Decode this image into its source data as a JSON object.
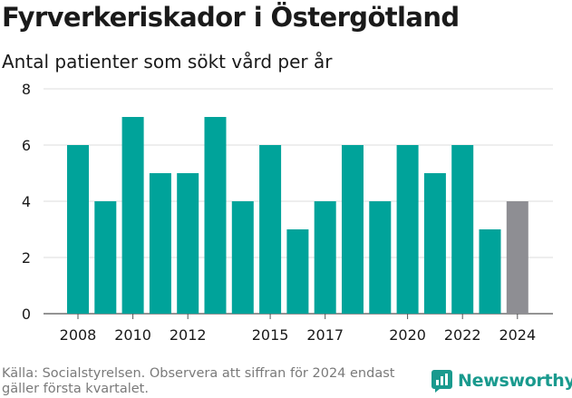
{
  "chart_data": {
    "type": "bar",
    "title": "Fyrverkeriskador i Östergötland",
    "subtitle": "Antal patienter som sökt vård per år",
    "categories": [
      "2008",
      "2009",
      "2010",
      "2011",
      "2012",
      "2013",
      "2014",
      "2015",
      "2016",
      "2017",
      "2018",
      "2019",
      "2020",
      "2021",
      "2022",
      "2023",
      "2024"
    ],
    "values": [
      6,
      4,
      7,
      5,
      5,
      7,
      4,
      6,
      3,
      4,
      6,
      4,
      6,
      5,
      6,
      3,
      4
    ],
    "x_tick_labels": [
      "2008",
      "2010",
      "2012",
      "2015",
      "2017",
      "2020",
      "2022",
      "2024"
    ],
    "y_ticks": [
      0,
      2,
      4,
      6,
      8
    ],
    "ylim": [
      0,
      8
    ],
    "grid": true,
    "colors": {
      "default": "#00a39a",
      "highlight": "#8e8e93",
      "highlight_category": "2024"
    }
  },
  "footer": {
    "source": "Källa: Socialstyrelsen. Observera att siffran för 2024 endast gäller första kvartalet."
  },
  "logo": {
    "text": "Newsworthy",
    "icon": "newsworthy-bar-chart-icon",
    "color": "#1a9a8e"
  }
}
